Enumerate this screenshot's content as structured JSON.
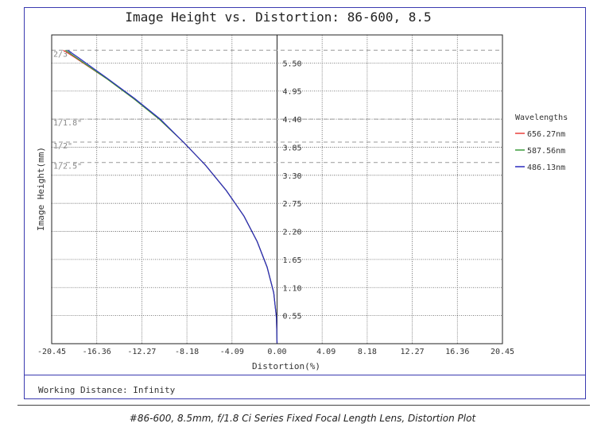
{
  "chart_data": {
    "type": "line",
    "title": "Image Height vs. Distortion: 86-600, 8.5",
    "xlabel": "Distortion(%)",
    "ylabel": "Image Height(mm)",
    "xlim": [
      -20.45,
      20.45
    ],
    "ylim": [
      0,
      6.05
    ],
    "x_ticks": [
      "-20.45",
      "-16.36",
      "-12.27",
      "-8.18",
      "-4.09",
      "0.00",
      "4.09",
      "8.18",
      "12.27",
      "16.36",
      "20.45"
    ],
    "y_ticks": [
      "0.55",
      "1.10",
      "1.65",
      "2.20",
      "2.75",
      "3.30",
      "3.85",
      "4.40",
      "4.95",
      "5.50"
    ],
    "grid": true,
    "legend_title": "Wavelengths",
    "legend_position": "right",
    "series": [
      {
        "name": "656.27nm",
        "color": "#e8413a",
        "x": [
          0,
          -0.05,
          -0.3,
          -0.9,
          -1.8,
          -3.0,
          -4.6,
          -6.5,
          -8.5,
          -10.7,
          -13.0,
          -15.5,
          -18.3,
          -19.4
        ],
        "y": [
          0,
          0.5,
          1.0,
          1.5,
          2.0,
          2.5,
          3.0,
          3.5,
          3.95,
          4.4,
          4.8,
          5.2,
          5.6,
          5.75
        ]
      },
      {
        "name": "587.56nm",
        "color": "#3a9a3a",
        "x": [
          0,
          -0.05,
          -0.3,
          -0.9,
          -1.8,
          -3.0,
          -4.6,
          -6.5,
          -8.5,
          -10.7,
          -13.0,
          -15.5,
          -18.2,
          -19.2
        ],
        "y": [
          0,
          0.5,
          1.0,
          1.5,
          2.0,
          2.5,
          3.0,
          3.5,
          3.95,
          4.4,
          4.8,
          5.2,
          5.6,
          5.75
        ]
      },
      {
        "name": "486.13nm",
        "color": "#2b2bbf",
        "x": [
          0,
          -0.05,
          -0.3,
          -0.9,
          -1.8,
          -3.0,
          -4.6,
          -6.5,
          -8.5,
          -10.6,
          -12.9,
          -15.4,
          -18.0,
          -19.0
        ],
        "y": [
          0,
          0.5,
          1.0,
          1.5,
          2.0,
          2.5,
          3.0,
          3.5,
          3.95,
          4.4,
          4.8,
          5.2,
          5.6,
          5.75
        ]
      }
    ],
    "annotations": [
      {
        "label": "2/3\"",
        "y": 5.75
      },
      {
        "label": "1/1.8\"",
        "y": 4.4
      },
      {
        "label": "1/2\"",
        "y": 3.95
      },
      {
        "label": "1/2.5\"",
        "y": 3.55
      }
    ]
  },
  "footer": {
    "working_distance": "Working Distance: Infinity",
    "caption": "#86-600, 8.5mm, f/1.8 Ci Series Fixed Focal Length Lens, Distortion Plot"
  }
}
